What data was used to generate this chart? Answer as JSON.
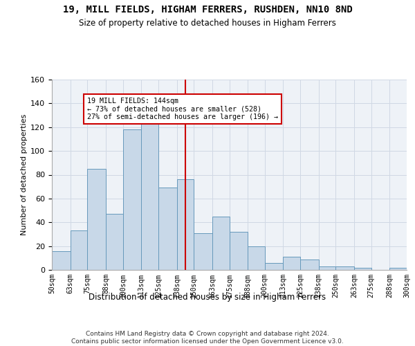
{
  "title": "19, MILL FIELDS, HIGHAM FERRERS, RUSHDEN, NN10 8ND",
  "subtitle": "Size of property relative to detached houses in Higham Ferrers",
  "xlabel": "Distribution of detached houses by size in Higham Ferrers",
  "ylabel": "Number of detached properties",
  "bar_color": "#c8d8e8",
  "bar_edge_color": "#6699bb",
  "vline_x": 144,
  "vline_color": "#cc0000",
  "annotation_text": "19 MILL FIELDS: 144sqm\n← 73% of detached houses are smaller (528)\n27% of semi-detached houses are larger (196) →",
  "annotation_box_color": "#ffffff",
  "annotation_box_edge": "#cc0000",
  "footer_text": "Contains HM Land Registry data © Crown copyright and database right 2024.\nContains public sector information licensed under the Open Government Licence v3.0.",
  "bin_edges": [
    50,
    63,
    75,
    88,
    100,
    113,
    125,
    138,
    150,
    163,
    175,
    188,
    200,
    213,
    225,
    238,
    250,
    263,
    275,
    288,
    300
  ],
  "bar_heights": [
    16,
    33,
    85,
    47,
    118,
    127,
    69,
    76,
    31,
    45,
    32,
    20,
    6,
    11,
    9,
    3,
    3,
    2,
    0,
    2
  ],
  "ylim": [
    0,
    160
  ],
  "yticks": [
    0,
    20,
    40,
    60,
    80,
    100,
    120,
    140,
    160
  ],
  "bg_color": "#eef2f7",
  "grid_color": "#d0d8e4"
}
